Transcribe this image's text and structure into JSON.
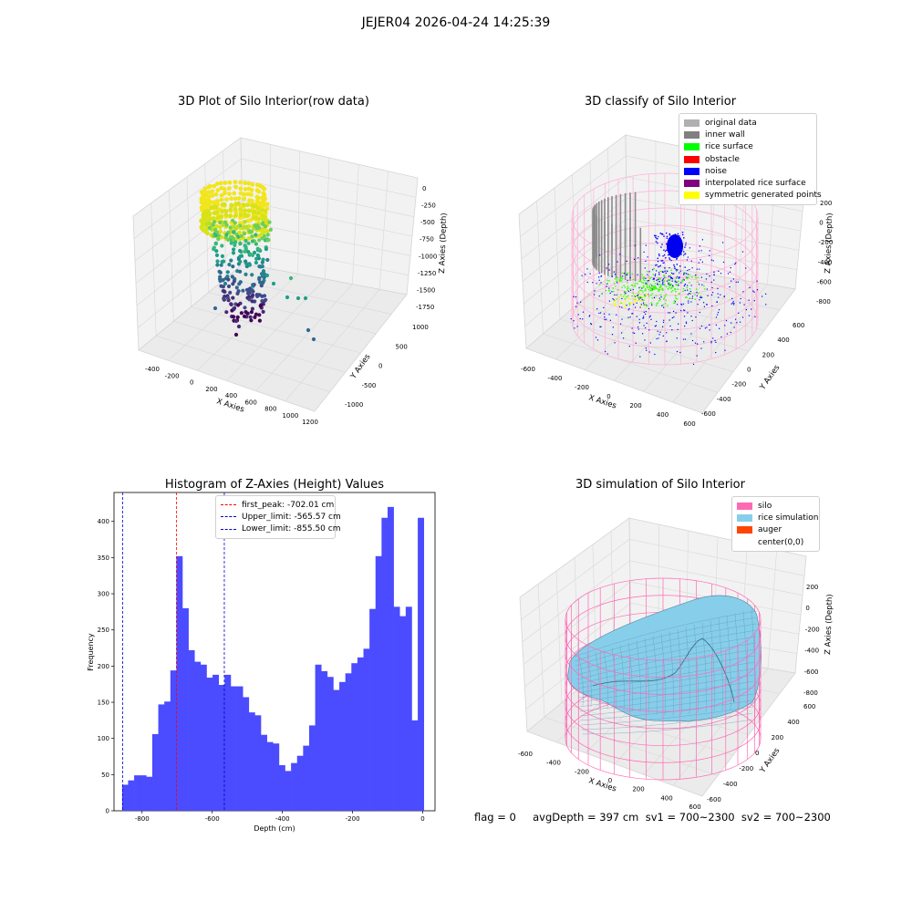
{
  "suptitle": "JEJER04 2026-04-24 14:25:39",
  "footer": "flag = 0     avgDepth = 397 cm  sv1 = 700~2300  sv2 = 700~2300",
  "panel_raw": {
    "title": "3D Plot of Silo Interior(row data)",
    "xlabel": "X Axies",
    "ylabel": "Y Axies",
    "zlabel": "Z Axies (Depth)",
    "xticks": [
      "-400",
      "-200",
      "0",
      "200",
      "400",
      "600",
      "800",
      "1000",
      "1200"
    ],
    "yticks": [
      "-1000",
      "-500",
      "0",
      "500",
      "1000"
    ],
    "zticks": [
      "0",
      "-250",
      "-500",
      "-750",
      "-1000",
      "-1250",
      "-1500",
      "-1750"
    ]
  },
  "panel_classify": {
    "title": "3D classify of Silo Interior",
    "xlabel": "X Axies",
    "ylabel": "Y Axies",
    "zlabel": "Z Axies (Depth)",
    "xticks": [
      "-600",
      "-400",
      "-200",
      "0",
      "200",
      "400",
      "600"
    ],
    "yticks": [
      "-600",
      "-400",
      "-200",
      "0",
      "200",
      "400",
      "600"
    ],
    "zticks": [
      "200",
      "0",
      "-200",
      "-400",
      "-600",
      "-800"
    ],
    "legend": [
      {
        "label": "original data",
        "color": "#b0b0b0"
      },
      {
        "label": "inner wall",
        "color": "#808080"
      },
      {
        "label": "rice surface",
        "color": "#00ff00"
      },
      {
        "label": "obstacle",
        "color": "#ff0000"
      },
      {
        "label": "noise",
        "color": "#0000ff"
      },
      {
        "label": "interpolated rice surface",
        "color": "#800080"
      },
      {
        "label": "symmetric generated points",
        "color": "#ffff00"
      }
    ]
  },
  "panel_sim": {
    "title": "3D simulation of Silo Interior",
    "xlabel": "X Axies",
    "ylabel": "Y Axies",
    "zlabel": "Z Axies (Depth)",
    "xticks": [
      "-600",
      "-400",
      "-200",
      "0",
      "200",
      "400",
      "600"
    ],
    "yticks": [
      "-600",
      "-400",
      "-200",
      "0",
      "200",
      "400",
      "600"
    ],
    "zticks": [
      "200",
      "0",
      "-200",
      "-400",
      "-600",
      "-800"
    ],
    "legend": [
      {
        "label": "silo",
        "color": "#ff69b4"
      },
      {
        "label": "rice simulation",
        "color": "#87ceeb"
      },
      {
        "label": "auger",
        "color": "#ff4500"
      },
      {
        "label": "center(0,0)",
        "color": ""
      }
    ]
  },
  "chart_data": {
    "type": "bar",
    "title": "Histogram of Z-Axies (Height) Values",
    "xlabel": "Depth (cm)",
    "ylabel": "Frequency",
    "xlim": [
      -880,
      35
    ],
    "ylim": [
      0,
      440
    ],
    "xticks": [
      -800,
      -600,
      -400,
      -200,
      0
    ],
    "yticks": [
      0,
      50,
      100,
      150,
      200,
      250,
      300,
      350,
      400
    ],
    "bar_color": "#4b4bff",
    "bin_edges_start": -857,
    "bin_width": 17.2,
    "values": [
      36,
      42,
      49,
      49,
      47,
      106,
      147,
      151,
      194,
      352,
      280,
      222,
      206,
      202,
      184,
      188,
      174,
      188,
      172,
      172,
      157,
      136,
      132,
      105,
      95,
      93,
      63,
      55,
      66,
      76,
      90,
      118,
      202,
      193,
      185,
      167,
      178,
      190,
      204,
      212,
      224,
      279,
      352,
      405,
      420,
      282,
      269,
      282,
      125,
      405
    ],
    "vlines": [
      {
        "x": -702.01,
        "color": "#ff0000",
        "label": "first_peak: -702.01 cm"
      },
      {
        "x": -565.57,
        "color": "#0000cc",
        "label": "Upper_limit: -565.57 cm"
      },
      {
        "x": -855.5,
        "color": "#0000cc",
        "label": "Lower_limit: -855.50 cm"
      }
    ]
  }
}
